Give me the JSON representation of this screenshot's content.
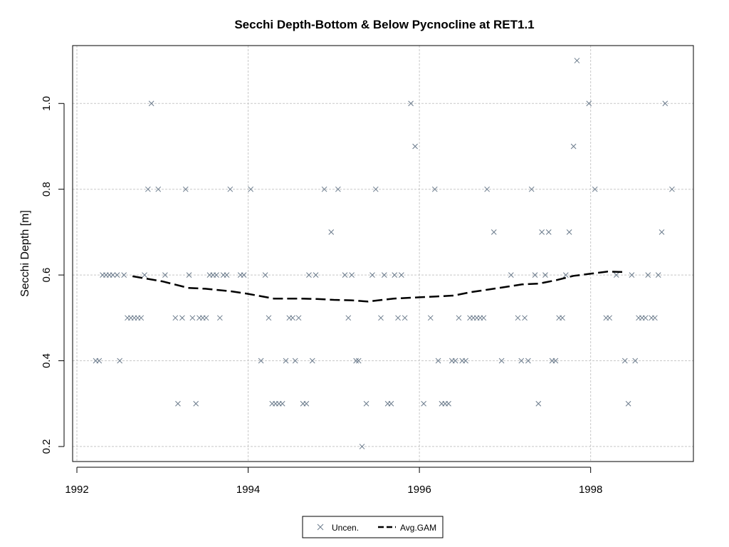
{
  "chart_data": {
    "type": "scatter",
    "title": "Secchi Depth-Bottom & Below Pycnocline at RET1.1",
    "xlabel": "",
    "ylabel": "Secchi Depth [m]",
    "xlim": [
      1991.95,
      1999.2
    ],
    "ylim": [
      0.165,
      1.135
    ],
    "x_ticks": [
      1992,
      1994,
      1996,
      1998
    ],
    "x_tick_labels": [
      "1992",
      "1994",
      "1996",
      "1998"
    ],
    "y_ticks": [
      0.2,
      0.4,
      0.6,
      0.8,
      1.0
    ],
    "y_tick_labels": [
      "0.2",
      "0.4",
      "0.6",
      "0.8",
      "1.0"
    ],
    "grid": true,
    "legend_position": "bottom-center",
    "series": [
      {
        "name": "Uncen.",
        "marker": "x",
        "color": "#6b7b8c",
        "points": [
          [
            1992.22,
            0.4
          ],
          [
            1992.26,
            0.4
          ],
          [
            1992.3,
            0.6
          ],
          [
            1992.34,
            0.6
          ],
          [
            1992.38,
            0.6
          ],
          [
            1992.42,
            0.6
          ],
          [
            1992.47,
            0.6
          ],
          [
            1992.5,
            0.4
          ],
          [
            1992.55,
            0.6
          ],
          [
            1992.59,
            0.5
          ],
          [
            1992.63,
            0.5
          ],
          [
            1992.67,
            0.5
          ],
          [
            1992.71,
            0.5
          ],
          [
            1992.75,
            0.5
          ],
          [
            1992.79,
            0.6
          ],
          [
            1992.83,
            0.8
          ],
          [
            1992.87,
            1.0
          ],
          [
            1992.95,
            0.8
          ],
          [
            1993.03,
            0.6
          ],
          [
            1993.15,
            0.5
          ],
          [
            1993.18,
            0.3
          ],
          [
            1993.23,
            0.5
          ],
          [
            1993.27,
            0.8
          ],
          [
            1993.31,
            0.6
          ],
          [
            1993.35,
            0.5
          ],
          [
            1993.39,
            0.3
          ],
          [
            1993.43,
            0.5
          ],
          [
            1993.47,
            0.5
          ],
          [
            1993.51,
            0.5
          ],
          [
            1993.55,
            0.6
          ],
          [
            1993.59,
            0.6
          ],
          [
            1993.63,
            0.6
          ],
          [
            1993.67,
            0.5
          ],
          [
            1993.71,
            0.6
          ],
          [
            1993.75,
            0.6
          ],
          [
            1993.79,
            0.8
          ],
          [
            1993.91,
            0.6
          ],
          [
            1993.95,
            0.6
          ],
          [
            1994.03,
            0.8
          ],
          [
            1994.15,
            0.4
          ],
          [
            1994.2,
            0.6
          ],
          [
            1994.24,
            0.5
          ],
          [
            1994.28,
            0.3
          ],
          [
            1994.32,
            0.3
          ],
          [
            1994.36,
            0.3
          ],
          [
            1994.4,
            0.3
          ],
          [
            1994.44,
            0.4
          ],
          [
            1994.48,
            0.5
          ],
          [
            1994.52,
            0.5
          ],
          [
            1994.55,
            0.4
          ],
          [
            1994.59,
            0.5
          ],
          [
            1994.64,
            0.3
          ],
          [
            1994.68,
            0.3
          ],
          [
            1994.71,
            0.6
          ],
          [
            1994.75,
            0.4
          ],
          [
            1994.79,
            0.6
          ],
          [
            1994.89,
            0.8
          ],
          [
            1994.97,
            0.7
          ],
          [
            1995.05,
            0.8
          ],
          [
            1995.13,
            0.6
          ],
          [
            1995.17,
            0.5
          ],
          [
            1995.21,
            0.6
          ],
          [
            1995.26,
            0.4
          ],
          [
            1995.29,
            0.4
          ],
          [
            1995.33,
            0.2
          ],
          [
            1995.38,
            0.3
          ],
          [
            1995.45,
            0.6
          ],
          [
            1995.49,
            0.8
          ],
          [
            1995.55,
            0.5
          ],
          [
            1995.59,
            0.6
          ],
          [
            1995.63,
            0.3
          ],
          [
            1995.67,
            0.3
          ],
          [
            1995.71,
            0.6
          ],
          [
            1995.75,
            0.5
          ],
          [
            1995.79,
            0.6
          ],
          [
            1995.83,
            0.5
          ],
          [
            1995.9,
            1.0
          ],
          [
            1995.95,
            0.9
          ],
          [
            1996.05,
            0.3
          ],
          [
            1996.13,
            0.5
          ],
          [
            1996.18,
            0.8
          ],
          [
            1996.22,
            0.4
          ],
          [
            1996.26,
            0.3
          ],
          [
            1996.3,
            0.3
          ],
          [
            1996.34,
            0.3
          ],
          [
            1996.38,
            0.4
          ],
          [
            1996.42,
            0.4
          ],
          [
            1996.46,
            0.5
          ],
          [
            1996.5,
            0.4
          ],
          [
            1996.54,
            0.4
          ],
          [
            1996.59,
            0.5
          ],
          [
            1996.63,
            0.5
          ],
          [
            1996.67,
            0.5
          ],
          [
            1996.71,
            0.5
          ],
          [
            1996.75,
            0.5
          ],
          [
            1996.79,
            0.8
          ],
          [
            1996.87,
            0.7
          ],
          [
            1996.96,
            0.4
          ],
          [
            1997.07,
            0.6
          ],
          [
            1997.15,
            0.5
          ],
          [
            1997.19,
            0.4
          ],
          [
            1997.23,
            0.5
          ],
          [
            1997.27,
            0.4
          ],
          [
            1997.31,
            0.8
          ],
          [
            1997.35,
            0.6
          ],
          [
            1997.39,
            0.3
          ],
          [
            1997.43,
            0.7
          ],
          [
            1997.47,
            0.6
          ],
          [
            1997.51,
            0.7
          ],
          [
            1997.55,
            0.4
          ],
          [
            1997.59,
            0.4
          ],
          [
            1997.63,
            0.5
          ],
          [
            1997.67,
            0.5
          ],
          [
            1997.71,
            0.6
          ],
          [
            1997.75,
            0.7
          ],
          [
            1997.8,
            0.9
          ],
          [
            1997.84,
            1.1
          ],
          [
            1997.98,
            1.0
          ],
          [
            1998.05,
            0.8
          ],
          [
            1998.18,
            0.5
          ],
          [
            1998.22,
            0.5
          ],
          [
            1998.3,
            0.6
          ],
          [
            1998.4,
            0.4
          ],
          [
            1998.44,
            0.3
          ],
          [
            1998.48,
            0.6
          ],
          [
            1998.52,
            0.4
          ],
          [
            1998.56,
            0.5
          ],
          [
            1998.6,
            0.5
          ],
          [
            1998.64,
            0.5
          ],
          [
            1998.67,
            0.6
          ],
          [
            1998.71,
            0.5
          ],
          [
            1998.75,
            0.5
          ],
          [
            1998.79,
            0.6
          ],
          [
            1998.83,
            0.7
          ],
          [
            1998.87,
            1.0
          ],
          [
            1998.95,
            0.8
          ]
        ]
      },
      {
        "name": "Avg.GAM",
        "line_style": "dashed",
        "color": "#000000",
        "points": [
          [
            1992.65,
            0.597
          ],
          [
            1993.0,
            0.585
          ],
          [
            1993.3,
            0.57
          ],
          [
            1993.5,
            0.568
          ],
          [
            1993.8,
            0.562
          ],
          [
            1994.0,
            0.556
          ],
          [
            1994.3,
            0.545
          ],
          [
            1994.6,
            0.545
          ],
          [
            1994.8,
            0.544
          ],
          [
            1995.0,
            0.542
          ],
          [
            1995.2,
            0.541
          ],
          [
            1995.4,
            0.538
          ],
          [
            1995.7,
            0.545
          ],
          [
            1996.0,
            0.548
          ],
          [
            1996.2,
            0.55
          ],
          [
            1996.4,
            0.552
          ],
          [
            1996.6,
            0.56
          ],
          [
            1996.8,
            0.566
          ],
          [
            1997.0,
            0.572
          ],
          [
            1997.2,
            0.578
          ],
          [
            1997.4,
            0.58
          ],
          [
            1997.6,
            0.588
          ],
          [
            1997.8,
            0.598
          ],
          [
            1998.0,
            0.603
          ],
          [
            1998.2,
            0.608
          ],
          [
            1998.37,
            0.607
          ]
        ]
      }
    ]
  }
}
